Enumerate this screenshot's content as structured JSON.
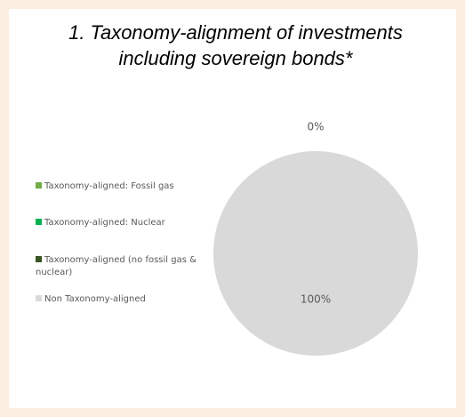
{
  "chart_data": {
    "type": "pie",
    "title": "1. Taxonomy-alignment of investments including sovereign bonds*",
    "series": [
      {
        "name": "Taxonomy-aligned: Fossil gas",
        "color": "#70ad47"
      },
      {
        "name": "Taxonomy-aligned: Nuclear",
        "color": "#00b050"
      },
      {
        "name": "Taxonomy-aligned (no fossil gas & nuclear)",
        "color": "#375623"
      },
      {
        "name": "Non Taxonomy-aligned",
        "color": "#d9d9d9"
      }
    ],
    "values": [
      0,
      0,
      0,
      100
    ],
    "value_labels": [
      null,
      null,
      "0%",
      "100%"
    ],
    "legend": "left"
  }
}
